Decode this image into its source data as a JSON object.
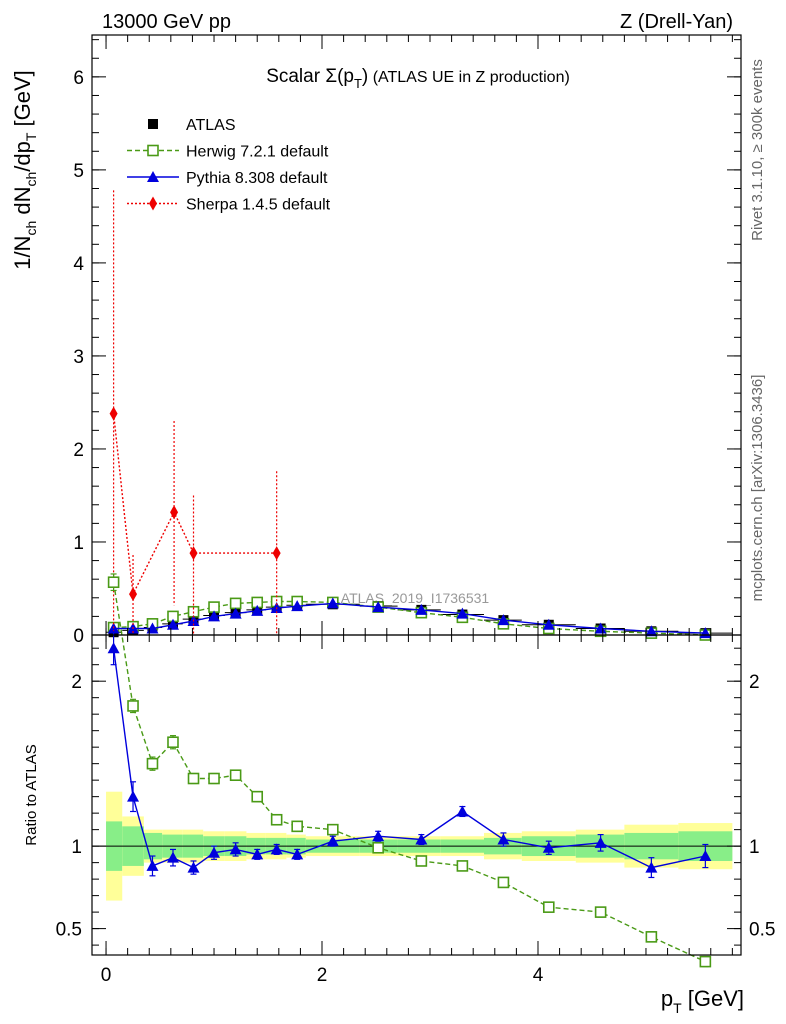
{
  "header": {
    "left": "13000 GeV pp",
    "right": "Z (Drell-Yan)"
  },
  "side_texts": {
    "rivet": "Rivet 3.1.10, ≥ 300k events",
    "mcplots": "mcplots.cern.ch [arXiv:1306.3436]"
  },
  "watermark": "ATLAS_2019_I1736531",
  "chart_data": {
    "type": "line",
    "title": "Scalar Σ(pT) (ATLAS UE in Z production)",
    "title_parts": {
      "main": "Scalar Σ(p",
      "sub": "T",
      "close": ")",
      "rest": " (ATLAS UE in Z production)"
    },
    "xlabel": "p_T [GeV]",
    "xlabel_parts": {
      "p": "p",
      "sub": "T",
      "unit": " [GeV]"
    },
    "ylabel": "1/N_ch dN_ch/dp_T [GeV]",
    "ylabel_parts": {
      "a": "1/N",
      "a_sub": "ch",
      "b": " dN",
      "b_sub": "ch",
      "c": "/dp",
      "c_sub": "T",
      "d": " [GeV]"
    },
    "ratio_ylabel": "Ratio to ATLAS",
    "xlim": [
      -0.13,
      5.88
    ],
    "ylim": [
      0,
      6.45
    ],
    "ratio_ylim": [
      0.34,
      2.28
    ],
    "x_ticks": [
      0,
      2,
      4
    ],
    "x_tick_labels": [
      "0",
      "2",
      "4"
    ],
    "y_ticks": [
      0,
      1,
      2,
      3,
      4,
      5,
      6
    ],
    "y_tick_labels": [
      "0",
      "1",
      "2",
      "3",
      "4",
      "5",
      "6"
    ],
    "ratio_ticks": [
      0.5,
      1,
      2
    ],
    "ratio_tick_labels": [
      "0.5",
      "1",
      "2"
    ],
    "legend_position": "top-left",
    "legend": [
      {
        "key": "atlas",
        "label": "ATLAS"
      },
      {
        "key": "herwig",
        "label": "Herwig 7.2.1 default"
      },
      {
        "key": "pythia",
        "label": "Pythia 8.308 default"
      },
      {
        "key": "sherpa",
        "label": "Sherpa 1.4.5 default"
      }
    ],
    "colors": {
      "data": "#000000",
      "herwig": "#4a9a16",
      "pythia": "#0000dd",
      "sherpa": "#ee0000",
      "band_inner": "#88ee88",
      "band_outer": "#ffff99"
    },
    "x": [
      0.07,
      0.25,
      0.43,
      0.62,
      0.81,
      1.0,
      1.2,
      1.4,
      1.58,
      1.77,
      2.1,
      2.52,
      2.92,
      3.3,
      3.68,
      4.1,
      4.58,
      5.05,
      5.55
    ],
    "x_lo": [
      0.0,
      0.15,
      0.35,
      0.52,
      0.71,
      0.9,
      1.1,
      1.3,
      1.48,
      1.67,
      1.85,
      2.35,
      2.7,
      3.1,
      3.5,
      3.85,
      4.35,
      4.8,
      5.3
    ],
    "x_hi": [
      0.15,
      0.35,
      0.52,
      0.71,
      0.9,
      1.1,
      1.3,
      1.48,
      1.67,
      1.85,
      2.35,
      2.7,
      3.1,
      3.5,
      3.85,
      4.35,
      4.8,
      5.3,
      5.8
    ],
    "atlas": [
      0.03,
      0.05,
      0.08,
      0.12,
      0.17,
      0.21,
      0.24,
      0.27,
      0.3,
      0.32,
      0.33,
      0.31,
      0.27,
      0.22,
      0.16,
      0.11,
      0.07,
      0.04,
      0.02
    ],
    "atlas_band_inner": [
      0.15,
      0.12,
      0.08,
      0.07,
      0.07,
      0.06,
      0.06,
      0.05,
      0.05,
      0.05,
      0.04,
      0.04,
      0.04,
      0.04,
      0.05,
      0.06,
      0.07,
      0.08,
      0.09
    ],
    "atlas_band_outer": [
      0.33,
      0.18,
      0.1,
      0.1,
      0.1,
      0.09,
      0.09,
      0.08,
      0.08,
      0.07,
      0.06,
      0.06,
      0.06,
      0.06,
      0.08,
      0.09,
      0.1,
      0.13,
      0.14
    ],
    "series": [
      {
        "name": "Herwig 7.2.1 default",
        "key": "herwig",
        "marker": "open-square",
        "line": "dashed",
        "values": [
          0.08,
          0.09,
          0.12,
          0.2,
          0.25,
          0.3,
          0.34,
          0.35,
          0.36,
          0.36,
          0.35,
          0.3,
          0.24,
          0.19,
          0.12,
          0.07,
          0.04,
          0.02,
          0.0
        ],
        "ratio": [
          2.6,
          1.85,
          1.5,
          1.63,
          1.41,
          1.41,
          1.43,
          1.3,
          1.16,
          1.12,
          1.1,
          0.99,
          0.91,
          0.88,
          0.78,
          0.63,
          0.6,
          0.45,
          0.3
        ],
        "ratio_err": [
          0.05,
          0.04,
          0.04,
          0.04,
          0.03,
          0.03,
          0.03,
          0.03,
          0.03,
          0.02,
          0.02,
          0.02,
          0.02,
          0.02,
          0.02,
          0.02,
          0.03,
          0.03,
          0.03
        ]
      },
      {
        "name": "Pythia 8.308 default",
        "key": "pythia",
        "marker": "filled-triangle",
        "line": "solid",
        "values": [
          0.07,
          0.07,
          0.07,
          0.11,
          0.15,
          0.2,
          0.23,
          0.26,
          0.29,
          0.31,
          0.34,
          0.3,
          0.27,
          0.23,
          0.16,
          0.11,
          0.07,
          0.04,
          0.02
        ],
        "ratio": [
          2.2,
          1.3,
          0.88,
          0.93,
          0.87,
          0.96,
          0.98,
          0.95,
          0.98,
          0.95,
          1.03,
          1.06,
          1.04,
          1.21,
          1.04,
          0.99,
          1.02,
          0.87,
          0.94
        ],
        "ratio_err": [
          0.1,
          0.09,
          0.06,
          0.05,
          0.04,
          0.04,
          0.04,
          0.03,
          0.03,
          0.03,
          0.03,
          0.03,
          0.03,
          0.03,
          0.04,
          0.04,
          0.05,
          0.06,
          0.07
        ]
      },
      {
        "name": "Sherpa 1.4.5 default",
        "key": "sherpa",
        "marker": "filled-diamond",
        "line": "dotted",
        "x": [
          0.07,
          0.25,
          0.63,
          0.81,
          1.58
        ],
        "values": [
          2.38,
          0.44,
          1.32,
          0.88,
          0.88
        ],
        "err_lo": [
          2.38,
          0.44,
          1.0,
          0.88,
          0.88
        ],
        "err_hi": [
          2.4,
          0.42,
          0.98,
          0.62,
          0.88
        ]
      }
    ]
  }
}
